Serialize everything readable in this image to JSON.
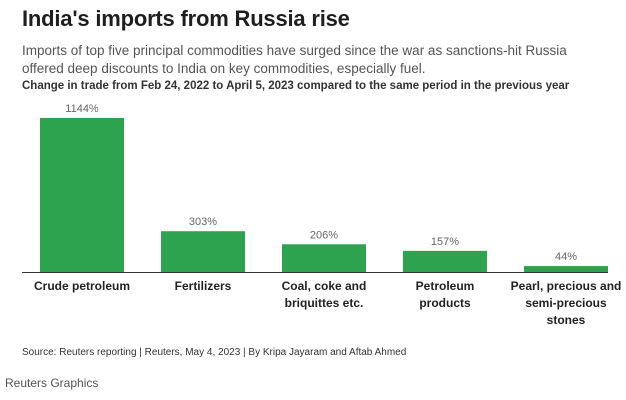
{
  "header": {
    "title": "India's imports from Russia rise",
    "subtitle": "Imports of top five principal commodities have surged since the war as sanctions-hit Russia offered deep discounts to India on key commodities, especially fuel."
  },
  "footer": {
    "source": "Source: Reuters reporting | Reuters, May 4, 2023 | By Kripa Jayaram and Aftab Ahmed",
    "credit": "Reuters Graphics"
  },
  "chart_data": {
    "type": "bar",
    "title": "India's imports from Russia rise",
    "subtitle": "Change in trade from Feb 24, 2022 to April 5, 2023 compared to the same period in the previous year",
    "categories": [
      [
        "Crude petroleum"
      ],
      [
        "Fertilizers"
      ],
      [
        "Coal, coke and",
        "briquittes etc."
      ],
      [
        "Petroleum",
        "products"
      ],
      [
        "Pearl, precious and",
        "semi-precious",
        "stones"
      ]
    ],
    "values": [
      1144,
      303,
      206,
      157,
      44
    ],
    "value_labels": [
      "1144%",
      "303%",
      "206%",
      "157%",
      "44%"
    ],
    "units": "%",
    "ylim": [
      0,
      1144
    ],
    "grid": false,
    "legend": "none",
    "colors": {
      "bar": "#2ea34f",
      "baseline": "#333333",
      "value_label": "#666666",
      "category_label": "#222222"
    }
  }
}
